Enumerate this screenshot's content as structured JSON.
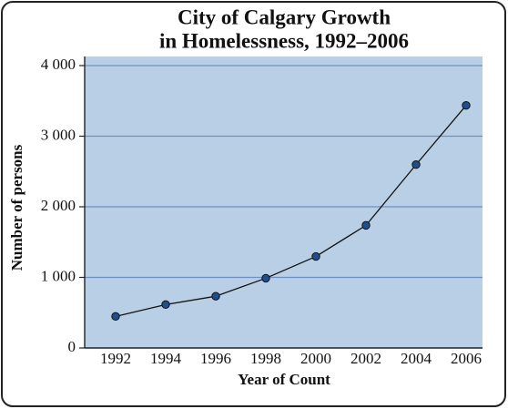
{
  "chart_data": {
    "type": "line",
    "title": [
      "City of Calgary Growth",
      "in Homelessness, 1992–2006"
    ],
    "x_label": "Year of Count",
    "y_label": "Number of persons",
    "categories": [
      "1992",
      "1994",
      "1996",
      "1998",
      "2000",
      "2002",
      "2004",
      "2006"
    ],
    "series": [
      {
        "name": "Number of persons",
        "color": "#1f4e8c",
        "values": [
          447,
          615,
          733,
          988,
          1296,
          1737,
          2597,
          3436
        ]
      }
    ],
    "ylim": [
      0,
      4000
    ],
    "yticks": [
      0,
      {
        "value": 1000,
        "label": "1 000"
      },
      {
        "value": 2000,
        "label": "2 000"
      },
      {
        "value": 3000,
        "label": "3 000"
      },
      {
        "value": 4000,
        "label": "4 000"
      }
    ],
    "grid": true,
    "background": "#b9cfe5",
    "grid_color": "#6e8fc4"
  }
}
